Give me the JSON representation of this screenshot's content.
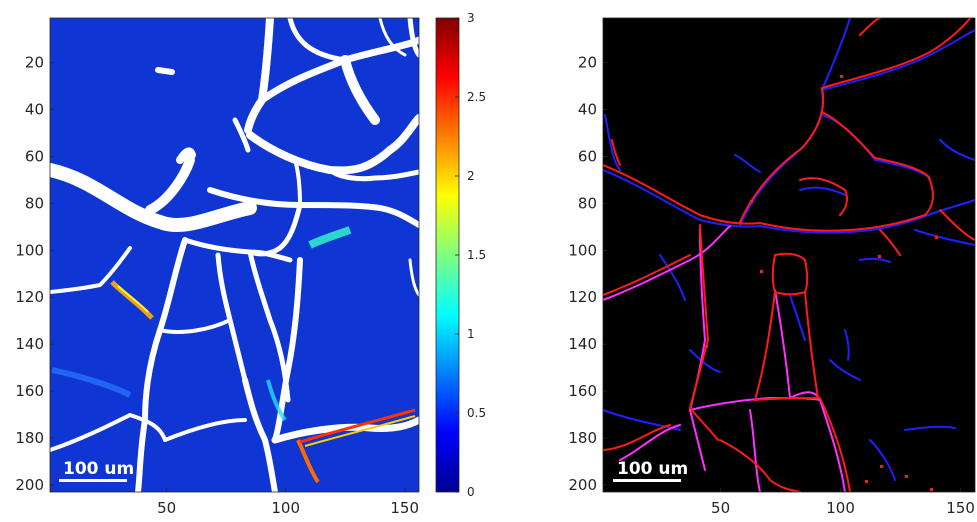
{
  "chart_data": [
    {
      "type": "heatmap",
      "title": "",
      "xlabel": "",
      "ylabel": "",
      "xlim": [
        1,
        156
      ],
      "ylim": [
        1,
        203
      ],
      "x_ticks": [
        50,
        100,
        150
      ],
      "y_ticks": [
        20,
        40,
        60,
        80,
        100,
        120,
        140,
        160,
        180,
        200
      ],
      "scale_bar_label": "100 um",
      "colormap": "jet",
      "background_color": "#0a2fcc",
      "mask_color": "#ffffff",
      "colorbar": {
        "min": 0,
        "max": 3,
        "ticks": [
          0,
          0.5,
          1,
          1.5,
          2,
          2.5,
          3
        ],
        "tick_labels": [
          "0",
          "0.5",
          "1",
          "1.5",
          "2",
          "2.5",
          "3"
        ]
      }
    },
    {
      "type": "heatmap",
      "title": "",
      "xlabel": "",
      "ylabel": "",
      "xlim": [
        1,
        156
      ],
      "ylim": [
        1,
        203
      ],
      "x_ticks": [
        50,
        100,
        150
      ],
      "y_ticks": [
        20,
        40,
        60,
        80,
        100,
        120,
        140,
        160,
        180,
        200
      ],
      "scale_bar_label": "100 um",
      "background_color": "#000000",
      "line_colors": [
        "#ff0000",
        "#2020ff",
        "#ff20ff"
      ]
    }
  ]
}
